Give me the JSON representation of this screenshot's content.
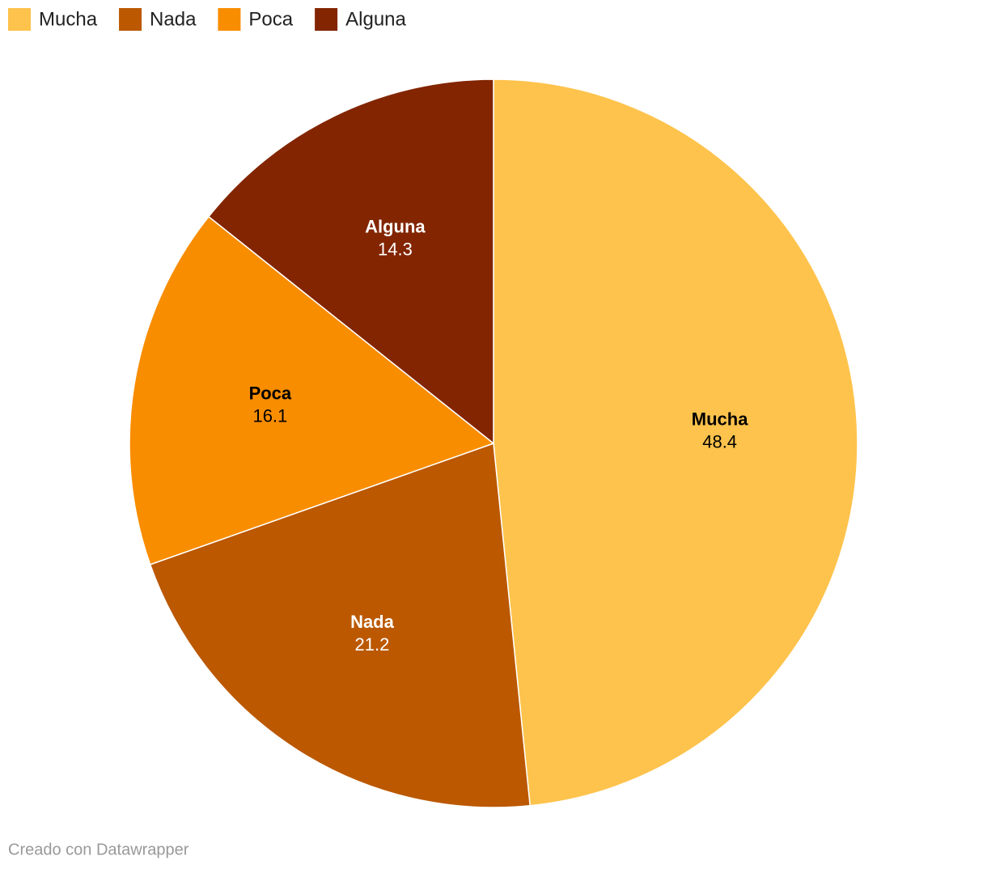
{
  "chart_data": {
    "type": "pie",
    "categories": [
      "Mucha",
      "Nada",
      "Poca",
      "Alguna"
    ],
    "values": [
      48.4,
      21.2,
      16.1,
      14.3
    ],
    "colors": [
      "#fec34c",
      "#bb5800",
      "#f98d00",
      "#822500"
    ],
    "legend": "top-left",
    "footer": "Creado con Datawrapper"
  }
}
